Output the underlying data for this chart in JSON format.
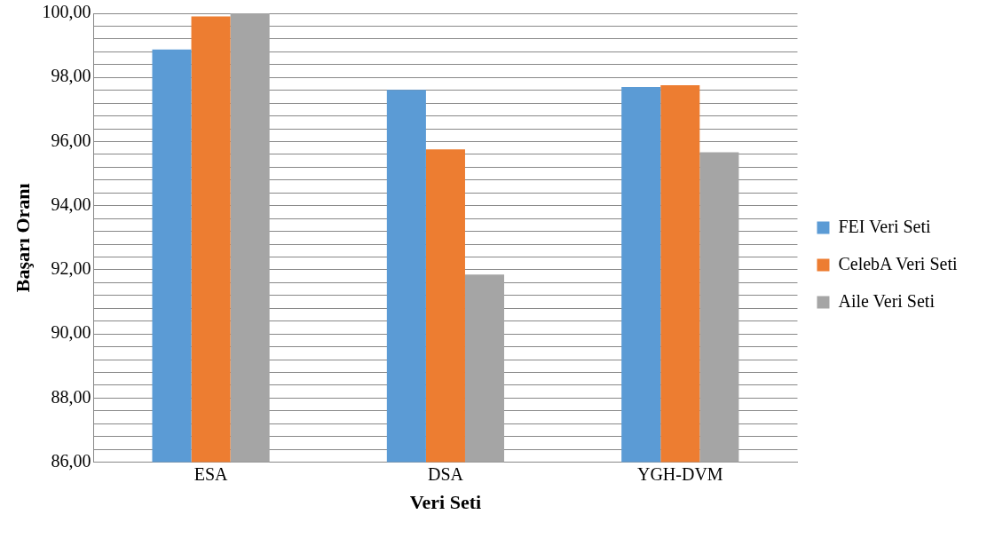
{
  "chart_data": {
    "type": "bar",
    "xlabel": "Veri Seti",
    "ylabel": "Başarı Oranı",
    "categories": [
      "ESA",
      "DSA",
      "YGH-DVM"
    ],
    "series": [
      {
        "name": "FEI Veri Seti",
        "color": "#5b9bd5",
        "values": [
          98.87,
          97.61,
          97.7
        ]
      },
      {
        "name": "CelebA Veri Seti",
        "color": "#ed7d31",
        "values": [
          99.9,
          95.76,
          97.76
        ]
      },
      {
        "name": "Aile Veri Seti",
        "color": "#a5a5a5",
        "values": [
          100,
          91.85,
          95.67
        ]
      }
    ],
    "ylim": [
      86,
      100
    ],
    "yticks": [
      {
        "value": 86,
        "label": "86,00"
      },
      {
        "value": 86.4,
        "label": null
      },
      {
        "value": 86.8,
        "label": null
      },
      {
        "value": 87.2,
        "label": null
      },
      {
        "value": 87.6,
        "label": null
      },
      {
        "value": 88,
        "label": "88,00"
      },
      {
        "value": 88.4,
        "label": null
      },
      {
        "value": 88.8,
        "label": null
      },
      {
        "value": 89.2,
        "label": null
      },
      {
        "value": 89.6,
        "label": null
      },
      {
        "value": 90,
        "label": "90,00"
      },
      {
        "value": 90.4,
        "label": null
      },
      {
        "value": 90.8,
        "label": null
      },
      {
        "value": 91.2,
        "label": null
      },
      {
        "value": 91.6,
        "label": null
      },
      {
        "value": 92,
        "label": "92,00"
      },
      {
        "value": 92.4,
        "label": null
      },
      {
        "value": 92.8,
        "label": null
      },
      {
        "value": 93.2,
        "label": null
      },
      {
        "value": 93.6,
        "label": null
      },
      {
        "value": 94,
        "label": "94,00"
      },
      {
        "value": 94.4,
        "label": null
      },
      {
        "value": 94.8,
        "label": null
      },
      {
        "value": 95.2,
        "label": null
      },
      {
        "value": 95.6,
        "label": null
      },
      {
        "value": 96,
        "label": "96,00"
      },
      {
        "value": 96.4,
        "label": null
      },
      {
        "value": 96.8,
        "label": null
      },
      {
        "value": 97.2,
        "label": null
      },
      {
        "value": 97.6,
        "label": null
      },
      {
        "value": 98,
        "label": "98,00"
      },
      {
        "value": 98.4,
        "label": null
      },
      {
        "value": 98.8,
        "label": null
      },
      {
        "value": 99.2,
        "label": null
      },
      {
        "value": 99.6,
        "label": null
      },
      {
        "value": 100,
        "label": "100,00"
      }
    ],
    "grid": "y",
    "legend": "right"
  }
}
